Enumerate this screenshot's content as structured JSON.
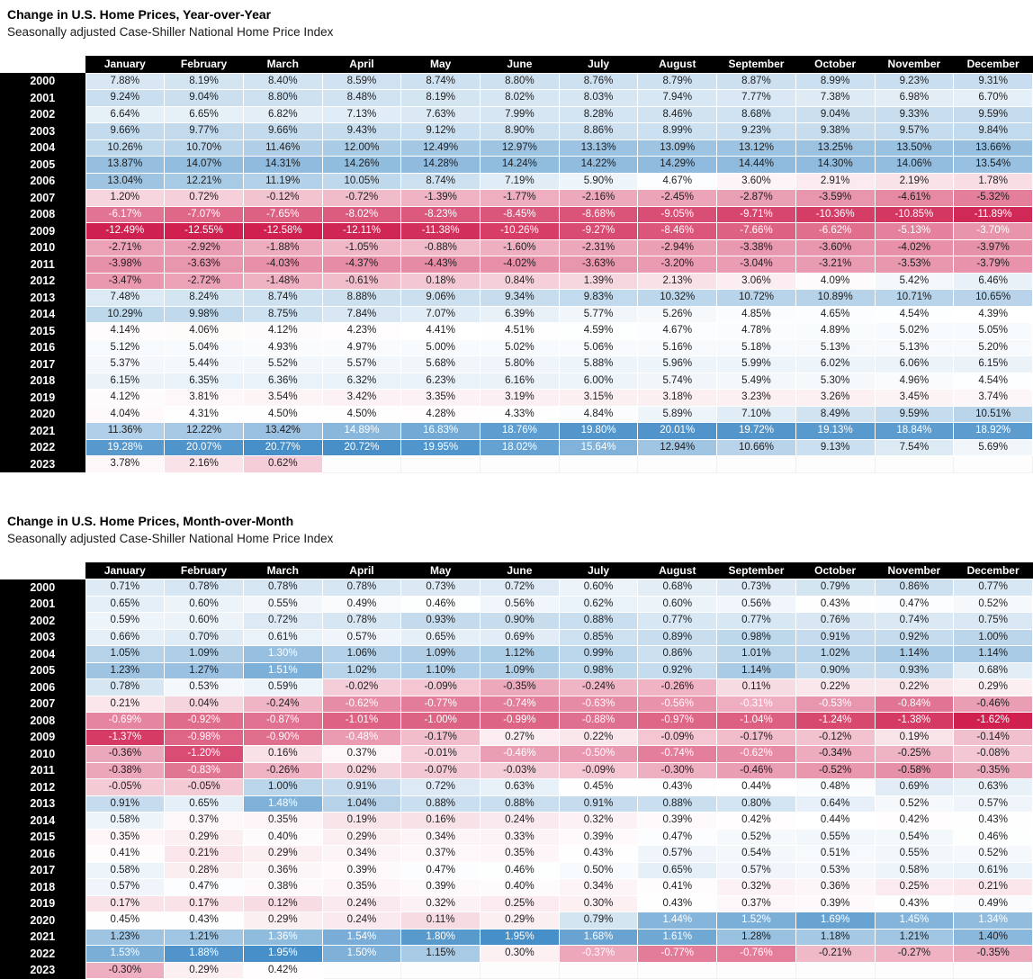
{
  "chart_data": [
    {
      "type": "heatmap",
      "title": "Change in U.S. Home Prices, Year-over-Year",
      "subtitle": "Seasonally adjusted Case-Shiller National Home Price Index",
      "value_suffix": "%",
      "columns": [
        "January",
        "February",
        "March",
        "April",
        "May",
        "June",
        "July",
        "August",
        "September",
        "October",
        "November",
        "December"
      ],
      "rows": [
        "2000",
        "2001",
        "2002",
        "2003",
        "2004",
        "2005",
        "2006",
        "2007",
        "2008",
        "2009",
        "2010",
        "2011",
        "2012",
        "2013",
        "2014",
        "2015",
        "2016",
        "2017",
        "2018",
        "2019",
        "2020",
        "2021",
        "2022",
        "2023"
      ],
      "values": [
        [
          7.88,
          8.19,
          8.4,
          8.59,
          8.74,
          8.8,
          8.76,
          8.79,
          8.87,
          8.99,
          9.23,
          9.31
        ],
        [
          9.24,
          9.04,
          8.8,
          8.48,
          8.19,
          8.02,
          8.03,
          7.94,
          7.77,
          7.38,
          6.98,
          6.7
        ],
        [
          6.64,
          6.65,
          6.82,
          7.13,
          7.63,
          7.99,
          8.28,
          8.46,
          8.68,
          9.04,
          9.33,
          9.59
        ],
        [
          9.66,
          9.77,
          9.66,
          9.43,
          9.12,
          8.9,
          8.86,
          8.99,
          9.23,
          9.38,
          9.57,
          9.84
        ],
        [
          10.26,
          10.7,
          11.46,
          12.0,
          12.49,
          12.97,
          13.13,
          13.09,
          13.12,
          13.25,
          13.5,
          13.66
        ],
        [
          13.87,
          14.07,
          14.31,
          14.26,
          14.28,
          14.24,
          14.22,
          14.29,
          14.44,
          14.3,
          14.06,
          13.54
        ],
        [
          13.04,
          12.21,
          11.19,
          10.05,
          8.74,
          7.19,
          5.9,
          4.67,
          3.6,
          2.91,
          2.19,
          1.78
        ],
        [
          1.2,
          0.72,
          -0.12,
          -0.72,
          -1.39,
          -1.77,
          -2.16,
          -2.45,
          -2.87,
          -3.59,
          -4.61,
          -5.32
        ],
        [
          -6.17,
          -7.07,
          -7.65,
          -8.02,
          -8.23,
          -8.45,
          -8.68,
          -9.05,
          -9.71,
          -10.36,
          -10.85,
          -11.89
        ],
        [
          -12.49,
          -12.55,
          -12.58,
          -12.11,
          -11.38,
          -10.26,
          -9.27,
          -8.46,
          -7.66,
          -6.62,
          -5.13,
          -3.7
        ],
        [
          -2.71,
          -2.92,
          -1.88,
          -1.05,
          -0.88,
          -1.6,
          -2.31,
          -2.94,
          -3.38,
          -3.6,
          -4.02,
          -3.97
        ],
        [
          -3.98,
          -3.63,
          -4.03,
          -4.37,
          -4.43,
          -4.02,
          -3.63,
          -3.2,
          -3.04,
          -3.21,
          -3.53,
          -3.79
        ],
        [
          -3.47,
          -2.72,
          -1.48,
          -0.61,
          0.18,
          0.84,
          1.39,
          2.13,
          3.06,
          4.09,
          5.42,
          6.46
        ],
        [
          7.48,
          8.24,
          8.74,
          8.88,
          9.06,
          9.34,
          9.83,
          10.32,
          10.72,
          10.89,
          10.71,
          10.65
        ],
        [
          10.29,
          9.98,
          8.75,
          7.84,
          7.07,
          6.39,
          5.77,
          5.26,
          4.85,
          4.65,
          4.54,
          4.39
        ],
        [
          4.14,
          4.06,
          4.12,
          4.23,
          4.41,
          4.51,
          4.59,
          4.67,
          4.78,
          4.89,
          5.02,
          5.05
        ],
        [
          5.12,
          5.04,
          4.93,
          4.97,
          5.0,
          5.02,
          5.06,
          5.16,
          5.18,
          5.13,
          5.13,
          5.2
        ],
        [
          5.37,
          5.44,
          5.52,
          5.57,
          5.68,
          5.8,
          5.88,
          5.96,
          5.99,
          6.02,
          6.06,
          6.15
        ],
        [
          6.15,
          6.35,
          6.36,
          6.32,
          6.23,
          6.16,
          6.0,
          5.74,
          5.49,
          5.3,
          4.96,
          4.54
        ],
        [
          4.12,
          3.81,
          3.54,
          3.42,
          3.35,
          3.19,
          3.15,
          3.18,
          3.23,
          3.26,
          3.45,
          3.74
        ],
        [
          4.04,
          4.31,
          4.5,
          4.5,
          4.28,
          4.33,
          4.84,
          5.89,
          7.1,
          8.49,
          9.59,
          10.51
        ],
        [
          11.36,
          12.22,
          13.42,
          14.89,
          16.83,
          18.76,
          19.8,
          20.01,
          19.72,
          19.13,
          18.84,
          18.92
        ],
        [
          19.28,
          20.07,
          20.77,
          20.72,
          19.95,
          18.02,
          15.64,
          12.94,
          10.66,
          9.13,
          7.54,
          5.69
        ],
        [
          3.78,
          2.16,
          0.62,
          null,
          null,
          null,
          null,
          null,
          null,
          null,
          null,
          null
        ]
      ],
      "color_scale": {
        "positive_color": "#478fc8",
        "negative_color": "#cf2050",
        "neutral_color": "#ffffff",
        "min_value": -12.58,
        "mid_value": 4.4,
        "max_value": 20.77
      },
      "white_text_cells": {
        "8": "all",
        "9": "all",
        "21": [
          3,
          4,
          5,
          6,
          7,
          8,
          9,
          10,
          11
        ],
        "22": [
          0,
          1,
          2,
          3,
          4,
          5,
          6
        ]
      }
    },
    {
      "type": "heatmap",
      "title": "Change in U.S. Home Prices, Month-over-Month",
      "subtitle": "Seasonally adjusted Case-Shiller National Home Price Index",
      "value_suffix": "%",
      "columns": [
        "January",
        "February",
        "March",
        "April",
        "May",
        "June",
        "July",
        "August",
        "September",
        "October",
        "November",
        "December"
      ],
      "rows": [
        "2000",
        "2001",
        "2002",
        "2003",
        "2004",
        "2005",
        "2006",
        "2007",
        "2008",
        "2009",
        "2010",
        "2011",
        "2012",
        "2013",
        "2014",
        "2015",
        "2016",
        "2017",
        "2018",
        "2019",
        "2020",
        "2021",
        "2022",
        "2023"
      ],
      "values": [
        [
          0.71,
          0.78,
          0.78,
          0.78,
          0.73,
          0.72,
          0.6,
          0.68,
          0.73,
          0.79,
          0.86,
          0.77
        ],
        [
          0.65,
          0.6,
          0.55,
          0.49,
          0.46,
          0.56,
          0.62,
          0.6,
          0.56,
          0.43,
          0.47,
          0.52
        ],
        [
          0.59,
          0.6,
          0.72,
          0.78,
          0.93,
          0.9,
          0.88,
          0.77,
          0.77,
          0.76,
          0.74,
          0.75
        ],
        [
          0.66,
          0.7,
          0.61,
          0.57,
          0.65,
          0.69,
          0.85,
          0.89,
          0.98,
          0.91,
          0.92,
          1.0
        ],
        [
          1.05,
          1.09,
          1.3,
          1.06,
          1.09,
          1.12,
          0.99,
          0.86,
          1.01,
          1.02,
          1.14,
          1.14
        ],
        [
          1.23,
          1.27,
          1.51,
          1.02,
          1.1,
          1.09,
          0.98,
          0.92,
          1.14,
          0.9,
          0.93,
          0.68
        ],
        [
          0.78,
          0.53,
          0.59,
          -0.02,
          -0.09,
          -0.35,
          -0.24,
          -0.26,
          0.11,
          0.22,
          0.22,
          0.29
        ],
        [
          0.21,
          0.04,
          -0.24,
          -0.62,
          -0.77,
          -0.74,
          -0.63,
          -0.56,
          -0.31,
          -0.53,
          -0.84,
          -0.46
        ],
        [
          -0.69,
          -0.92,
          -0.87,
          -1.01,
          -1.0,
          -0.99,
          -0.88,
          -0.97,
          -1.04,
          -1.24,
          -1.38,
          -1.62
        ],
        [
          -1.37,
          -0.98,
          -0.9,
          -0.48,
          -0.17,
          0.27,
          0.22,
          -0.09,
          -0.17,
          -0.12,
          0.19,
          -0.14
        ],
        [
          -0.36,
          -1.2,
          0.16,
          0.37,
          -0.01,
          -0.46,
          -0.5,
          -0.74,
          -0.62,
          -0.34,
          -0.25,
          -0.08
        ],
        [
          -0.38,
          -0.83,
          -0.26,
          0.02,
          -0.07,
          -0.03,
          -0.09,
          -0.3,
          -0.46,
          -0.52,
          -0.58,
          -0.35
        ],
        [
          -0.05,
          -0.05,
          1.0,
          0.91,
          0.72,
          0.63,
          0.45,
          0.43,
          0.44,
          0.48,
          0.69,
          0.63
        ],
        [
          0.91,
          0.65,
          1.48,
          1.04,
          0.88,
          0.88,
          0.91,
          0.88,
          0.8,
          0.64,
          0.52,
          0.57
        ],
        [
          0.58,
          0.37,
          0.35,
          0.19,
          0.16,
          0.24,
          0.32,
          0.39,
          0.42,
          0.44,
          0.42,
          0.43
        ],
        [
          0.35,
          0.29,
          0.4,
          0.29,
          0.34,
          0.33,
          0.39,
          0.47,
          0.52,
          0.55,
          0.54,
          0.46
        ],
        [
          0.41,
          0.21,
          0.29,
          0.34,
          0.37,
          0.35,
          0.43,
          0.57,
          0.54,
          0.51,
          0.55,
          0.52
        ],
        [
          0.58,
          0.28,
          0.36,
          0.39,
          0.47,
          0.46,
          0.5,
          0.65,
          0.57,
          0.53,
          0.58,
          0.61
        ],
        [
          0.57,
          0.47,
          0.38,
          0.35,
          0.39,
          0.4,
          0.34,
          0.41,
          0.32,
          0.36,
          0.25,
          0.21
        ],
        [
          0.17,
          0.17,
          0.12,
          0.24,
          0.32,
          0.25,
          0.3,
          0.43,
          0.37,
          0.39,
          0.43,
          0.49
        ],
        [
          0.45,
          0.43,
          0.29,
          0.24,
          0.11,
          0.29,
          0.79,
          1.44,
          1.52,
          1.69,
          1.45,
          1.34
        ],
        [
          1.23,
          1.21,
          1.36,
          1.54,
          1.8,
          1.95,
          1.68,
          1.61,
          1.28,
          1.18,
          1.21,
          1.4
        ],
        [
          1.53,
          1.88,
          1.95,
          1.5,
          1.15,
          0.3,
          -0.37,
          -0.77,
          -0.76,
          -0.21,
          -0.27,
          -0.35
        ],
        [
          -0.3,
          0.29,
          0.42,
          null,
          null,
          null,
          null,
          null,
          null,
          null,
          null,
          null
        ]
      ],
      "color_scale": {
        "positive_color": "#478fc8",
        "negative_color": "#cf2050",
        "neutral_color": "#ffffff",
        "min_value": -1.62,
        "mid_value": 0.44,
        "max_value": 1.95
      },
      "white_text_cells": {
        "4": [
          2
        ],
        "5": [
          2
        ],
        "7": [
          3,
          4,
          5,
          6,
          7,
          8,
          9,
          10
        ],
        "8": "all",
        "9": [
          0,
          1,
          2,
          3
        ],
        "10": [
          1,
          5,
          6,
          7,
          8
        ],
        "11": [
          1
        ],
        "13": [
          2
        ],
        "20": [
          7,
          8,
          9,
          10,
          11
        ],
        "21": [
          2,
          3,
          4,
          5,
          6,
          7
        ],
        "22": [
          0,
          1,
          2,
          3,
          6,
          7,
          8
        ]
      }
    }
  ]
}
